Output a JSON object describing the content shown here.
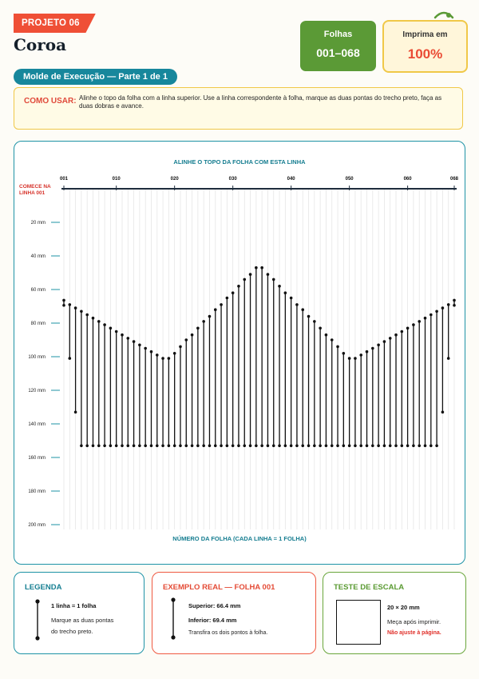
{
  "header": {
    "project_tag": "PROJETO 06",
    "title": "Coroa",
    "sheets_label": "Folhas",
    "sheets_value": "001–068",
    "print_label": "Imprima em",
    "print_value": "100%",
    "subtitle_pill": "Molde de Execução — Parte 1 de 1"
  },
  "how_to_use": {
    "label": "COMO USAR:",
    "text": "Alinhe o topo da folha com a linha superior. Use a linha correspondente à folha, marque as duas pontas do trecho preto, faça as duas dobras e avance."
  },
  "chart": {
    "top_caption": "ALINHE O TOPO DA FOLHA COM ESTA LINHA",
    "start_note": "COMECE NA LINHA 001",
    "bottom_caption": "NÚMERO DA FOLHA (CADA LINHA = 1 FOLHA)",
    "x_tick_labels": [
      "001",
      "010",
      "020",
      "030",
      "040",
      "050",
      "060",
      "068"
    ],
    "y_tick_labels": [
      "20 mm",
      "40 mm",
      "60 mm",
      "80 mm",
      "100 mm",
      "120 mm",
      "140 mm",
      "160 mm",
      "180 mm",
      "200 mm"
    ]
  },
  "chart_data": {
    "type": "range-bar",
    "title": "",
    "xlabel": "NÚMERO DA FOLHA (CADA LINHA = 1 FOLHA)",
    "ylabel": "mm",
    "x_range": [
      1,
      68
    ],
    "ylim": [
      0,
      200
    ],
    "y_inverted": true,
    "grid": true,
    "sheets": [
      {
        "sheet": 1,
        "top": 66.4,
        "bottom": 69.4
      },
      {
        "sheet": 2,
        "top": 69,
        "bottom": 101
      },
      {
        "sheet": 3,
        "top": 71,
        "bottom": 133
      },
      {
        "sheet": 4,
        "top": 73,
        "bottom": 153
      },
      {
        "sheet": 5,
        "top": 75,
        "bottom": 153
      },
      {
        "sheet": 6,
        "top": 77,
        "bottom": 153
      },
      {
        "sheet": 7,
        "top": 79,
        "bottom": 153
      },
      {
        "sheet": 8,
        "top": 81,
        "bottom": 153
      },
      {
        "sheet": 9,
        "top": 83,
        "bottom": 153
      },
      {
        "sheet": 10,
        "top": 85,
        "bottom": 153
      },
      {
        "sheet": 11,
        "top": 87,
        "bottom": 153
      },
      {
        "sheet": 12,
        "top": 89,
        "bottom": 153
      },
      {
        "sheet": 13,
        "top": 91,
        "bottom": 153
      },
      {
        "sheet": 14,
        "top": 93,
        "bottom": 153
      },
      {
        "sheet": 15,
        "top": 95,
        "bottom": 153
      },
      {
        "sheet": 16,
        "top": 97,
        "bottom": 153
      },
      {
        "sheet": 17,
        "top": 99,
        "bottom": 153
      },
      {
        "sheet": 18,
        "top": 101,
        "bottom": 153
      },
      {
        "sheet": 19,
        "top": 101,
        "bottom": 153
      },
      {
        "sheet": 20,
        "top": 98,
        "bottom": 153
      },
      {
        "sheet": 21,
        "top": 94,
        "bottom": 153
      },
      {
        "sheet": 22,
        "top": 90,
        "bottom": 153
      },
      {
        "sheet": 23,
        "top": 87,
        "bottom": 153
      },
      {
        "sheet": 24,
        "top": 83,
        "bottom": 153
      },
      {
        "sheet": 25,
        "top": 79,
        "bottom": 153
      },
      {
        "sheet": 26,
        "top": 76,
        "bottom": 153
      },
      {
        "sheet": 27,
        "top": 72,
        "bottom": 153
      },
      {
        "sheet": 28,
        "top": 69,
        "bottom": 153
      },
      {
        "sheet": 29,
        "top": 65,
        "bottom": 153
      },
      {
        "sheet": 30,
        "top": 62,
        "bottom": 153
      },
      {
        "sheet": 31,
        "top": 58,
        "bottom": 153
      },
      {
        "sheet": 32,
        "top": 54,
        "bottom": 153
      },
      {
        "sheet": 33,
        "top": 51,
        "bottom": 153
      },
      {
        "sheet": 34,
        "top": 47,
        "bottom": 153
      },
      {
        "sheet": 35,
        "top": 47,
        "bottom": 153
      },
      {
        "sheet": 36,
        "top": 51,
        "bottom": 153
      },
      {
        "sheet": 37,
        "top": 54,
        "bottom": 153
      },
      {
        "sheet": 38,
        "top": 58,
        "bottom": 153
      },
      {
        "sheet": 39,
        "top": 62,
        "bottom": 153
      },
      {
        "sheet": 40,
        "top": 65,
        "bottom": 153
      },
      {
        "sheet": 41,
        "top": 69,
        "bottom": 153
      },
      {
        "sheet": 42,
        "top": 72,
        "bottom": 153
      },
      {
        "sheet": 43,
        "top": 76,
        "bottom": 153
      },
      {
        "sheet": 44,
        "top": 79,
        "bottom": 153
      },
      {
        "sheet": 45,
        "top": 83,
        "bottom": 153
      },
      {
        "sheet": 46,
        "top": 87,
        "bottom": 153
      },
      {
        "sheet": 47,
        "top": 90,
        "bottom": 153
      },
      {
        "sheet": 48,
        "top": 94,
        "bottom": 153
      },
      {
        "sheet": 49,
        "top": 98,
        "bottom": 153
      },
      {
        "sheet": 50,
        "top": 101,
        "bottom": 153
      },
      {
        "sheet": 51,
        "top": 101,
        "bottom": 153
      },
      {
        "sheet": 52,
        "top": 99,
        "bottom": 153
      },
      {
        "sheet": 53,
        "top": 97,
        "bottom": 153
      },
      {
        "sheet": 54,
        "top": 95,
        "bottom": 153
      },
      {
        "sheet": 55,
        "top": 93,
        "bottom": 153
      },
      {
        "sheet": 56,
        "top": 91,
        "bottom": 153
      },
      {
        "sheet": 57,
        "top": 89,
        "bottom": 153
      },
      {
        "sheet": 58,
        "top": 87,
        "bottom": 153
      },
      {
        "sheet": 59,
        "top": 85,
        "bottom": 153
      },
      {
        "sheet": 60,
        "top": 83,
        "bottom": 153
      },
      {
        "sheet": 61,
        "top": 81,
        "bottom": 153
      },
      {
        "sheet": 62,
        "top": 79,
        "bottom": 153
      },
      {
        "sheet": 63,
        "top": 77,
        "bottom": 153
      },
      {
        "sheet": 64,
        "top": 75,
        "bottom": 153
      },
      {
        "sheet": 65,
        "top": 73,
        "bottom": 153
      },
      {
        "sheet": 66,
        "top": 71,
        "bottom": 133
      },
      {
        "sheet": 67,
        "top": 69,
        "bottom": 101
      },
      {
        "sheet": 68,
        "top": 66.4,
        "bottom": 69.4
      }
    ]
  },
  "legend": {
    "title": "LEGENDA",
    "line1": "1 linha = 1 folha",
    "line2": "Marque as duas pontas",
    "line3": "do trecho preto."
  },
  "example": {
    "title": "EXEMPLO REAL — FOLHA 001",
    "top": "Superior: 66.4 mm",
    "bottom": "Inferior: 69.4 mm",
    "note": "Transfira os dois pontos à folha."
  },
  "scale_test": {
    "title": "TESTE DE ESCALA",
    "size": "20 × 20 mm",
    "note": "Meça após imprimir.",
    "warning": "Não ajuste à página."
  },
  "colors": {
    "accent_red": "#ef4f36",
    "accent_teal": "#17879c",
    "accent_green": "#5b9a36",
    "accent_yellow": "#f0c848"
  }
}
